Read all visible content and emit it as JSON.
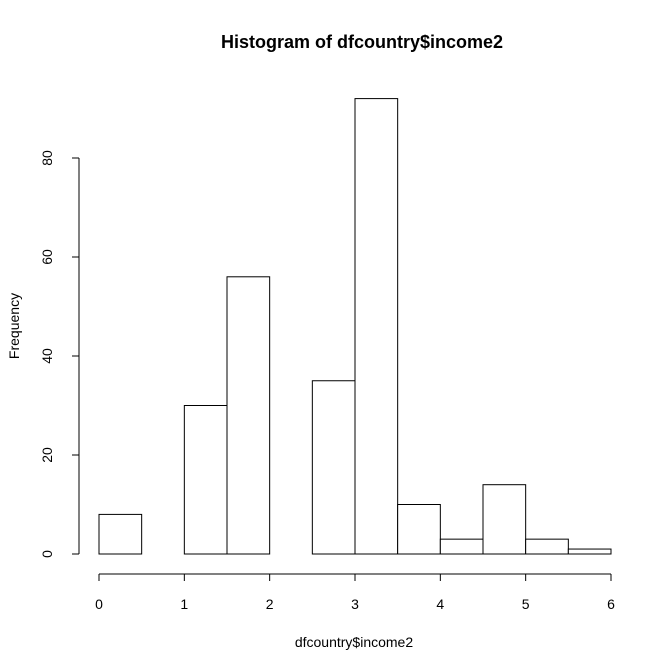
{
  "chart_data": {
    "type": "bar",
    "title": "Histogram of dfcountry$income2",
    "xlabel": "dfcountry$income2",
    "ylabel": "Frequency",
    "bin_edges": [
      0,
      0.5,
      1,
      1.5,
      2,
      2.5,
      3,
      3.5,
      4,
      4.5,
      5,
      5.5,
      6
    ],
    "values": [
      8,
      0,
      30,
      56,
      0,
      35,
      92,
      10,
      3,
      14,
      3,
      1
    ],
    "xlim": [
      0,
      6
    ],
    "ylim": [
      0,
      92
    ],
    "x_ticks": [
      0,
      1,
      2,
      3,
      4,
      5,
      6
    ],
    "y_ticks": [
      0,
      20,
      40,
      60,
      80
    ],
    "grid": false,
    "colors": {
      "bar_fill": "#ffffff",
      "bar_stroke": "#000000"
    }
  }
}
